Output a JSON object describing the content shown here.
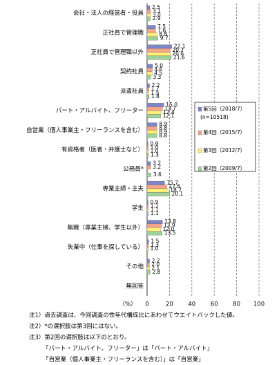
{
  "chart_data": {
    "type": "bar",
    "orientation": "horizontal",
    "categories": [
      "会社・法人の経営者・役員",
      "正社員で管理職",
      "正社員で管理職以外",
      "契約社員",
      "派遣社員",
      "パート・アルバイト、フリーター",
      "自営業（個人事業主・フリーランスを含む）",
      "有資格者（医者・弁護士など）",
      "公務員*",
      "専業主婦・主夫",
      "学生",
      "無職（専業主婦、学生以外）",
      "失業中（仕事を探している）",
      "その他",
      "無回答"
    ],
    "series": [
      {
        "name": "第5回（2018/7）",
        "color": "#7f86c8",
        "values": [
          2.5,
          7.5,
          22.1,
          5.0,
          2.2,
          15.0,
          8.9,
          0.9,
          3.2,
          15.7,
          0.9,
          13.8,
          1.5,
          2.2,
          null
        ],
        "value_labels": [
          "2.5",
          "7.5",
          "22.1",
          "5.0",
          "2.2",
          "15.0",
          "8.9",
          "0.9",
          "3.2",
          "15.7",
          "0.9",
          "13.8",
          "1.5",
          "2.2",
          null
        ]
      },
      {
        "name": "第4回（2015/7）",
        "color": "#f4a58a",
        "values": [
          3.1,
          7.6,
          20.7,
          4.6,
          1.7,
          13.7,
          8.8,
          1.0,
          3.2,
          17.6,
          1.1,
          12.9,
          1.3,
          2.0,
          null
        ],
        "value_labels": [
          "3.1",
          "7.6",
          "20.7",
          "4.6",
          "1.7",
          "13.7",
          "8.8",
          "1.0",
          "3.2",
          "17.6",
          "1.1",
          "12.9",
          "1.3",
          "2.0",
          null
        ]
      },
      {
        "name": "第3回（2012/7）",
        "color": "#fff07a",
        "values": [
          3.0,
          8.8,
          20.6,
          4.5,
          1.5,
          12.4,
          8.9,
          1.0,
          null,
          18.7,
          1.1,
          12.0,
          1.0,
          2.1,
          null
        ],
        "value_labels": [
          "3.0",
          "8.8",
          "20.6",
          "4.5",
          "1.5",
          "12.4",
          "8.9",
          "1.0",
          null,
          "18.7",
          "1.1",
          "12.0",
          "1.0",
          "2.1",
          null
        ]
      },
      {
        "name": "第2回（2009/7）",
        "color": "#9fd39a",
        "values": [
          2.9,
          9.7,
          21.6,
          3.3,
          1.8,
          12.1,
          8.8,
          1.3,
          3.6,
          20.1,
          1.1,
          13.5,
          null,
          2.8,
          null
        ],
        "value_labels": [
          "2.9",
          "9.7",
          "21.6",
          "3.3",
          "1.8",
          "12.1",
          "8.8",
          "1.3",
          "3.6",
          "20.1",
          "1.1",
          "13.5",
          null,
          "2.8",
          null
        ]
      }
    ],
    "legend_note": "(n=10518)",
    "xlabel": "（%）",
    "xlim": [
      0,
      100
    ],
    "xticks": [
      0,
      20,
      40,
      60,
      80,
      100
    ],
    "grid": true,
    "notes": [
      "注1）過去調査は、今回調査の性年代構成比にあわせてウエイトバックした値。",
      "注2）*の選択肢は第3回にはない。",
      "注3）第2回の選択肢は以下のとおり。",
      "「パート・アルバイト、フリーター」は「パート・アルバイト」",
      "「自営業（個人事業主・フリーランスを含む）」は「自営業」"
    ]
  }
}
